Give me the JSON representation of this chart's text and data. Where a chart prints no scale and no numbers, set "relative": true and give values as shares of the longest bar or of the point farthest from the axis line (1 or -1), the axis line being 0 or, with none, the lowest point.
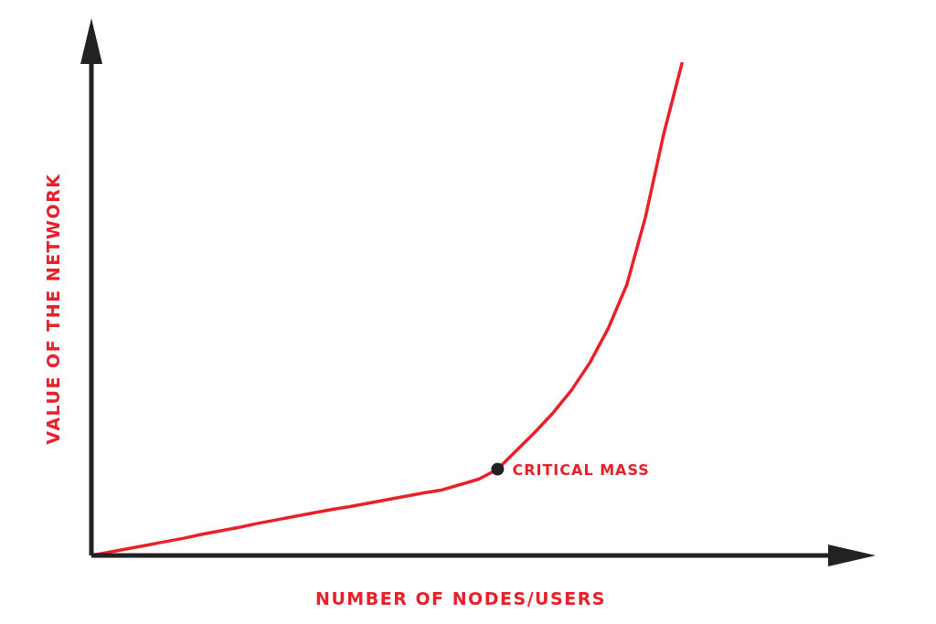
{
  "chart_data": {
    "type": "line",
    "relative": true,
    "xlabel": "NUMBER OF NODES/USERS",
    "ylabel": "VALUE OF THE NETWORK",
    "color": "#e8202a",
    "categories": [
      null,
      null,
      null,
      null,
      null,
      null,
      null,
      null,
      null,
      null,
      null,
      null,
      null,
      null,
      null,
      null,
      null,
      null,
      null,
      null,
      null,
      null,
      null,
      null,
      null,
      null,
      null,
      null,
      null,
      null,
      null,
      null,
      null,
      null,
      null,
      null,
      null,
      null,
      null,
      null,
      null
    ],
    "values": [
      0,
      0.007,
      0.014,
      0.021,
      0.028,
      0.035,
      0.043,
      0.05,
      0.057,
      0.065,
      0.072,
      0.079,
      0.086,
      0.093,
      0.099,
      0.106,
      0.113,
      0.12,
      0.127,
      0.133,
      0.144,
      0.155,
      0.175,
      0.212,
      0.249,
      0.289,
      0.335,
      0.391,
      0.461,
      0.549,
      0.685,
      0.855,
      1,
      null,
      null,
      null,
      null,
      null,
      null,
      null,
      null
    ],
    "annotations": [
      "CRITICAL MASS"
    ]
  }
}
